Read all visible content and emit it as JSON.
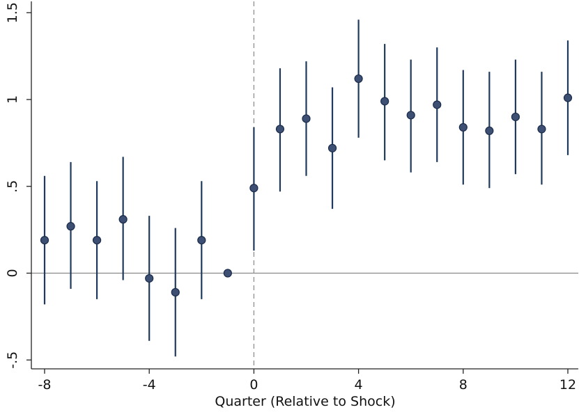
{
  "chart_data": {
    "type": "scatter",
    "title": "",
    "xlabel": "Quarter (Relative to Shock)",
    "ylabel": "",
    "xlim": [
      -8.5,
      12.4
    ],
    "ylim": [
      -0.55,
      1.5
    ],
    "x_ticks": [
      -8,
      -4,
      0,
      4,
      8,
      12
    ],
    "x_tick_labels": [
      "-8",
      "-4",
      "0",
      "4",
      "8",
      "12"
    ],
    "y_ticks": [
      -0.5,
      0,
      0.5,
      1,
      1.5
    ],
    "y_tick_labels": [
      "-.5",
      "0",
      ".5",
      "1",
      "1.5"
    ],
    "reference_lines": {
      "horizontal_y": 0,
      "vertical_x_dashed": 0
    },
    "grid": false,
    "legend": "none",
    "colors": {
      "point": "#3d4f73",
      "point_edge": "#1a2b4a",
      "error_bar": "#1f3a5c",
      "reference": "#888888"
    },
    "series": [
      {
        "points": [
          {
            "x": -8,
            "y": 0.19,
            "lo": -0.18,
            "hi": 0.56
          },
          {
            "x": -7,
            "y": 0.27,
            "lo": -0.09,
            "hi": 0.64
          },
          {
            "x": -6,
            "y": 0.19,
            "lo": -0.15,
            "hi": 0.53
          },
          {
            "x": -5,
            "y": 0.31,
            "lo": -0.04,
            "hi": 0.67
          },
          {
            "x": -4,
            "y": -0.03,
            "lo": -0.39,
            "hi": 0.33
          },
          {
            "x": -3,
            "y": -0.11,
            "lo": -0.48,
            "hi": 0.26
          },
          {
            "x": -2,
            "y": 0.19,
            "lo": -0.15,
            "hi": 0.53
          },
          {
            "x": -1,
            "y": 0.0,
            "lo": 0.0,
            "hi": 0.0
          },
          {
            "x": 0,
            "y": 0.49,
            "lo": 0.13,
            "hi": 0.84
          },
          {
            "x": 1,
            "y": 0.83,
            "lo": 0.47,
            "hi": 1.18
          },
          {
            "x": 2,
            "y": 0.89,
            "lo": 0.56,
            "hi": 1.22
          },
          {
            "x": 3,
            "y": 0.72,
            "lo": 0.37,
            "hi": 1.07
          },
          {
            "x": 4,
            "y": 1.12,
            "lo": 0.78,
            "hi": 1.46
          },
          {
            "x": 5,
            "y": 0.99,
            "lo": 0.65,
            "hi": 1.32
          },
          {
            "x": 6,
            "y": 0.91,
            "lo": 0.58,
            "hi": 1.23
          },
          {
            "x": 7,
            "y": 0.97,
            "lo": 0.64,
            "hi": 1.3
          },
          {
            "x": 8,
            "y": 0.84,
            "lo": 0.51,
            "hi": 1.17
          },
          {
            "x": 9,
            "y": 0.82,
            "lo": 0.49,
            "hi": 1.16
          },
          {
            "x": 10,
            "y": 0.9,
            "lo": 0.57,
            "hi": 1.23
          },
          {
            "x": 11,
            "y": 0.83,
            "lo": 0.51,
            "hi": 1.16
          },
          {
            "x": 12,
            "y": 1.01,
            "lo": 0.68,
            "hi": 1.34
          }
        ]
      }
    ]
  }
}
